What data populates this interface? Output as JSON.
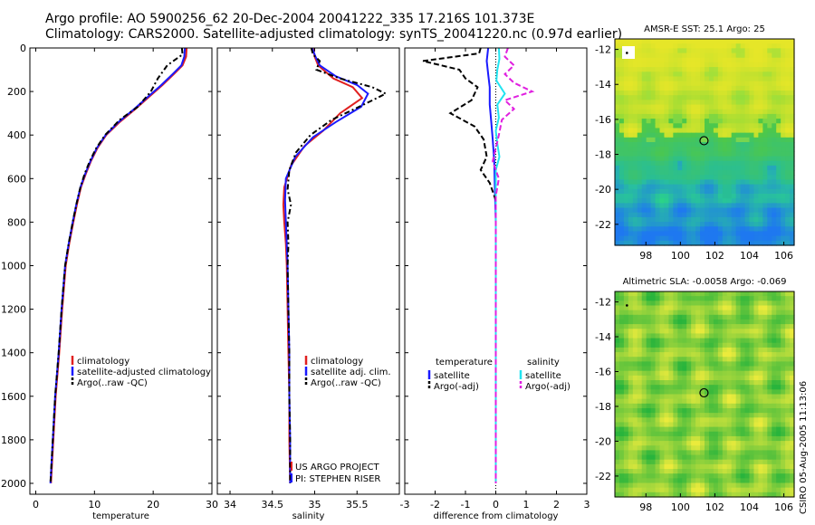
{
  "title_line1": "Argo profile: AO 5900256_62 20-Dec-2004 20041222_335 17.216S 101.373E",
  "title_line2": "Climatology: CARS2000. Satellite-adjusted climatology: synTS_20041220.nc (0.97d earlier)",
  "credit_stamp": "CSIRO 05-Aug-2005 11:13:06",
  "colors": {
    "red": "#e02020",
    "blue": "#1a1aff",
    "black": "#000000",
    "cyan": "#22e4f0",
    "magenta": "#e020e0"
  },
  "chart_data": [
    {
      "type": "line",
      "name": "temperature-panel",
      "xlabel": "temperature",
      "xlim": [
        -1,
        30
      ],
      "ylim": [
        2050,
        0
      ],
      "xticks": [
        0,
        10,
        20,
        30
      ],
      "yticks": [
        0,
        200,
        400,
        600,
        800,
        1000,
        1200,
        1400,
        1600,
        1800,
        2000
      ],
      "legend": [
        "climatology",
        "satellite-adjusted climatology",
        "Argo(..raw -QC)"
      ],
      "series": [
        {
          "name": "climatology",
          "color": "red",
          "dash": "",
          "points": [
            [
              25.7,
              0
            ],
            [
              25.6,
              40
            ],
            [
              25.0,
              80
            ],
            [
              23.5,
              120
            ],
            [
              21.6,
              170
            ],
            [
              19.5,
              220
            ],
            [
              17.0,
              280
            ],
            [
              14.3,
              340
            ],
            [
              12.0,
              400
            ],
            [
              10.5,
              460
            ],
            [
              9.4,
              520
            ],
            [
              8.5,
              580
            ],
            [
              7.7,
              640
            ],
            [
              7.0,
              720
            ],
            [
              6.4,
              800
            ],
            [
              5.7,
              900
            ],
            [
              5.1,
              1000
            ],
            [
              4.5,
              1200
            ],
            [
              4.0,
              1400
            ],
            [
              3.4,
              1600
            ],
            [
              3.0,
              1800
            ],
            [
              2.6,
              2000
            ]
          ]
        },
        {
          "name": "satellite-adjusted climatology",
          "color": "blue",
          "dash": "",
          "points": [
            [
              25.4,
              0
            ],
            [
              25.3,
              40
            ],
            [
              24.8,
              80
            ],
            [
              23.3,
              120
            ],
            [
              21.4,
              170
            ],
            [
              19.3,
              220
            ],
            [
              16.8,
              280
            ],
            [
              14.1,
              340
            ],
            [
              11.9,
              400
            ],
            [
              10.4,
              460
            ],
            [
              9.3,
              520
            ],
            [
              8.4,
              580
            ],
            [
              7.6,
              640
            ],
            [
              6.9,
              720
            ],
            [
              6.3,
              800
            ],
            [
              5.6,
              900
            ],
            [
              5.0,
              1000
            ],
            [
              4.4,
              1200
            ],
            [
              3.9,
              1400
            ],
            [
              3.3,
              1600
            ],
            [
              2.9,
              1800
            ],
            [
              2.5,
              2000
            ]
          ]
        },
        {
          "name": "Argo(..raw -QC)",
          "color": "black",
          "dash": "6 3 2 3",
          "points": [
            [
              24.9,
              0
            ],
            [
              25.0,
              30
            ],
            [
              22.4,
              80
            ],
            [
              20.8,
              140
            ],
            [
              19.6,
              200
            ],
            [
              17.4,
              270
            ],
            [
              14.3,
              330
            ],
            [
              11.8,
              400
            ],
            [
              10.3,
              460
            ],
            [
              9.2,
              520
            ],
            [
              8.3,
              580
            ],
            [
              7.6,
              640
            ],
            [
              6.9,
              720
            ],
            [
              6.3,
              800
            ],
            [
              5.6,
              900
            ],
            [
              5.0,
              1000
            ],
            [
              4.4,
              1200
            ],
            [
              3.9,
              1400
            ],
            [
              3.3,
              1600
            ],
            [
              2.9,
              1800
            ],
            [
              2.5,
              2000
            ]
          ]
        }
      ]
    },
    {
      "type": "line",
      "name": "salinity-panel",
      "xlabel": "salinity",
      "xlim": [
        33.85,
        36.0
      ],
      "ylim": [
        2050,
        0
      ],
      "xticks": [
        34,
        34.5,
        35,
        35.5
      ],
      "legend": [
        "climatology",
        "satellite adj. clim.",
        "Argo(..raw -QC)"
      ],
      "credits": [
        "US ARGO PROJECT",
        "PI: STEPHEN RISER"
      ],
      "series": [
        {
          "name": "climatology",
          "color": "red",
          "dash": "",
          "points": [
            [
              34.98,
              0
            ],
            [
              35.0,
              40
            ],
            [
              35.04,
              80
            ],
            [
              35.22,
              140
            ],
            [
              35.45,
              180
            ],
            [
              35.56,
              230
            ],
            [
              35.3,
              300
            ],
            [
              35.1,
              380
            ],
            [
              34.88,
              450
            ],
            [
              34.72,
              540
            ],
            [
              34.64,
              640
            ],
            [
              34.63,
              720
            ],
            [
              34.64,
              800
            ],
            [
              34.66,
              900
            ],
            [
              34.67,
              1000
            ],
            [
              34.68,
              1200
            ],
            [
              34.69,
              1400
            ],
            [
              34.7,
              1600
            ],
            [
              34.7,
              1800
            ],
            [
              34.71,
              2000
            ]
          ]
        },
        {
          "name": "satellite adj. clim.",
          "color": "blue",
          "dash": "",
          "points": [
            [
              34.97,
              0
            ],
            [
              35.01,
              40
            ],
            [
              35.06,
              80
            ],
            [
              35.25,
              130
            ],
            [
              35.5,
              170
            ],
            [
              35.63,
              210
            ],
            [
              35.55,
              270
            ],
            [
              35.25,
              340
            ],
            [
              34.98,
              410
            ],
            [
              34.77,
              500
            ],
            [
              34.66,
              600
            ],
            [
              34.65,
              700
            ],
            [
              34.66,
              800
            ],
            [
              34.67,
              900
            ],
            [
              34.68,
              1000
            ],
            [
              34.69,
              1200
            ],
            [
              34.7,
              1400
            ],
            [
              34.7,
              1600
            ],
            [
              34.71,
              1800
            ],
            [
              34.71,
              2000
            ]
          ]
        },
        {
          "name": "Argo(..raw -QC)",
          "color": "black",
          "dash": "6 3 2 3",
          "points": [
            [
              34.96,
              0
            ],
            [
              34.98,
              30
            ],
            [
              35.06,
              60
            ],
            [
              35.02,
              100
            ],
            [
              35.3,
              140
            ],
            [
              35.68,
              180
            ],
            [
              35.84,
              210
            ],
            [
              35.58,
              260
            ],
            [
              35.2,
              330
            ],
            [
              34.95,
              400
            ],
            [
              34.78,
              480
            ],
            [
              34.7,
              560
            ],
            [
              34.68,
              650
            ],
            [
              34.72,
              720
            ],
            [
              34.68,
              800
            ],
            [
              34.69,
              900
            ],
            [
              34.68,
              1000
            ],
            [
              34.69,
              1200
            ],
            [
              34.7,
              1400
            ],
            [
              34.7,
              1600
            ],
            [
              34.71,
              1800
            ],
            [
              34.71,
              2000
            ]
          ]
        }
      ]
    },
    {
      "type": "line",
      "name": "difference-panel",
      "xlabel": "difference from climatology",
      "xlim": [
        -3,
        3
      ],
      "ylim": [
        2050,
        0
      ],
      "xticks": [
        -3,
        -2,
        -1,
        0,
        1,
        2,
        3
      ],
      "legend_temperature_header": "temperature",
      "legend_salinity_header": "salinity",
      "legend": [
        "satellite",
        "Argo(-adj)",
        "satellite",
        "Argo(-adj)"
      ],
      "series": [
        {
          "name": "temperature satellite",
          "color": "blue",
          "dash": "",
          "points": [
            [
              -0.25,
              0
            ],
            [
              -0.3,
              60
            ],
            [
              -0.25,
              120
            ],
            [
              -0.2,
              180
            ],
            [
              -0.2,
              260
            ],
            [
              -0.15,
              340
            ],
            [
              -0.1,
              420
            ],
            [
              -0.05,
              520
            ],
            [
              -0.03,
              650
            ],
            [
              0.0,
              800
            ],
            [
              0.0,
              1000
            ],
            [
              0.0,
              2000
            ]
          ]
        },
        {
          "name": "temperature Argo(-adj)",
          "color": "black",
          "dash": "6 3",
          "points": [
            [
              -0.5,
              0
            ],
            [
              -0.55,
              25
            ],
            [
              -2.4,
              60
            ],
            [
              -1.2,
              100
            ],
            [
              -1.0,
              140
            ],
            [
              -0.6,
              180
            ],
            [
              -0.8,
              240
            ],
            [
              -1.5,
              300
            ],
            [
              -0.7,
              360
            ],
            [
              -0.4,
              420
            ],
            [
              -0.3,
              500
            ],
            [
              -0.5,
              560
            ],
            [
              -0.2,
              620
            ],
            [
              0.0,
              700
            ],
            [
              0.0,
              800
            ],
            [
              0.0,
              1000
            ],
            [
              0.0,
              2000
            ]
          ]
        },
        {
          "name": "salinity satellite",
          "color": "cyan",
          "dash": "",
          "points": [
            [
              0.1,
              0
            ],
            [
              0.12,
              50
            ],
            [
              0.05,
              100
            ],
            [
              0.02,
              150
            ],
            [
              0.3,
              210
            ],
            [
              0.05,
              260
            ],
            [
              0.1,
              320
            ],
            [
              0.0,
              380
            ],
            [
              0.05,
              440
            ],
            [
              0.12,
              500
            ],
            [
              0.0,
              560
            ],
            [
              0.0,
              700
            ],
            [
              0.0,
              1000
            ],
            [
              0.0,
              2000
            ]
          ]
        },
        {
          "name": "salinity Argo(-adj)",
          "color": "magenta",
          "dash": "6 3",
          "points": [
            [
              0.4,
              0
            ],
            [
              0.3,
              40
            ],
            [
              0.6,
              80
            ],
            [
              0.3,
              120
            ],
            [
              0.6,
              160
            ],
            [
              1.2,
              200
            ],
            [
              0.3,
              240
            ],
            [
              0.6,
              280
            ],
            [
              0.2,
              330
            ],
            [
              0.1,
              400
            ],
            [
              0.0,
              460
            ],
            [
              -0.1,
              520
            ],
            [
              0.1,
              600
            ],
            [
              0.0,
              680
            ],
            [
              0.0,
              800
            ],
            [
              0.0,
              1000
            ],
            [
              0.0,
              2000
            ]
          ]
        }
      ]
    },
    {
      "type": "heatmap",
      "name": "sst-map",
      "title": "AMSR-E SST: 25.1 Argo: 25",
      "xlim": [
        96.2,
        106.6
      ],
      "ylim": [
        -23.2,
        -11.4
      ],
      "xticks": [
        98,
        100,
        102,
        104,
        106
      ],
      "yticks": [
        -12,
        -14,
        -16,
        -18,
        -20,
        -22
      ],
      "marker": {
        "lon": 101.37,
        "lat": -17.22
      }
    },
    {
      "type": "heatmap",
      "name": "sla-map",
      "title": "Altimetric SLA: -0.0058 Argo: -0.069",
      "xlim": [
        96.2,
        106.6
      ],
      "ylim": [
        -23.2,
        -11.4
      ],
      "xticks": [
        98,
        100,
        102,
        104,
        106
      ],
      "yticks": [
        -12,
        -14,
        -16,
        -18,
        -20,
        -22
      ],
      "marker": {
        "lon": 101.37,
        "lat": -17.22
      }
    }
  ]
}
